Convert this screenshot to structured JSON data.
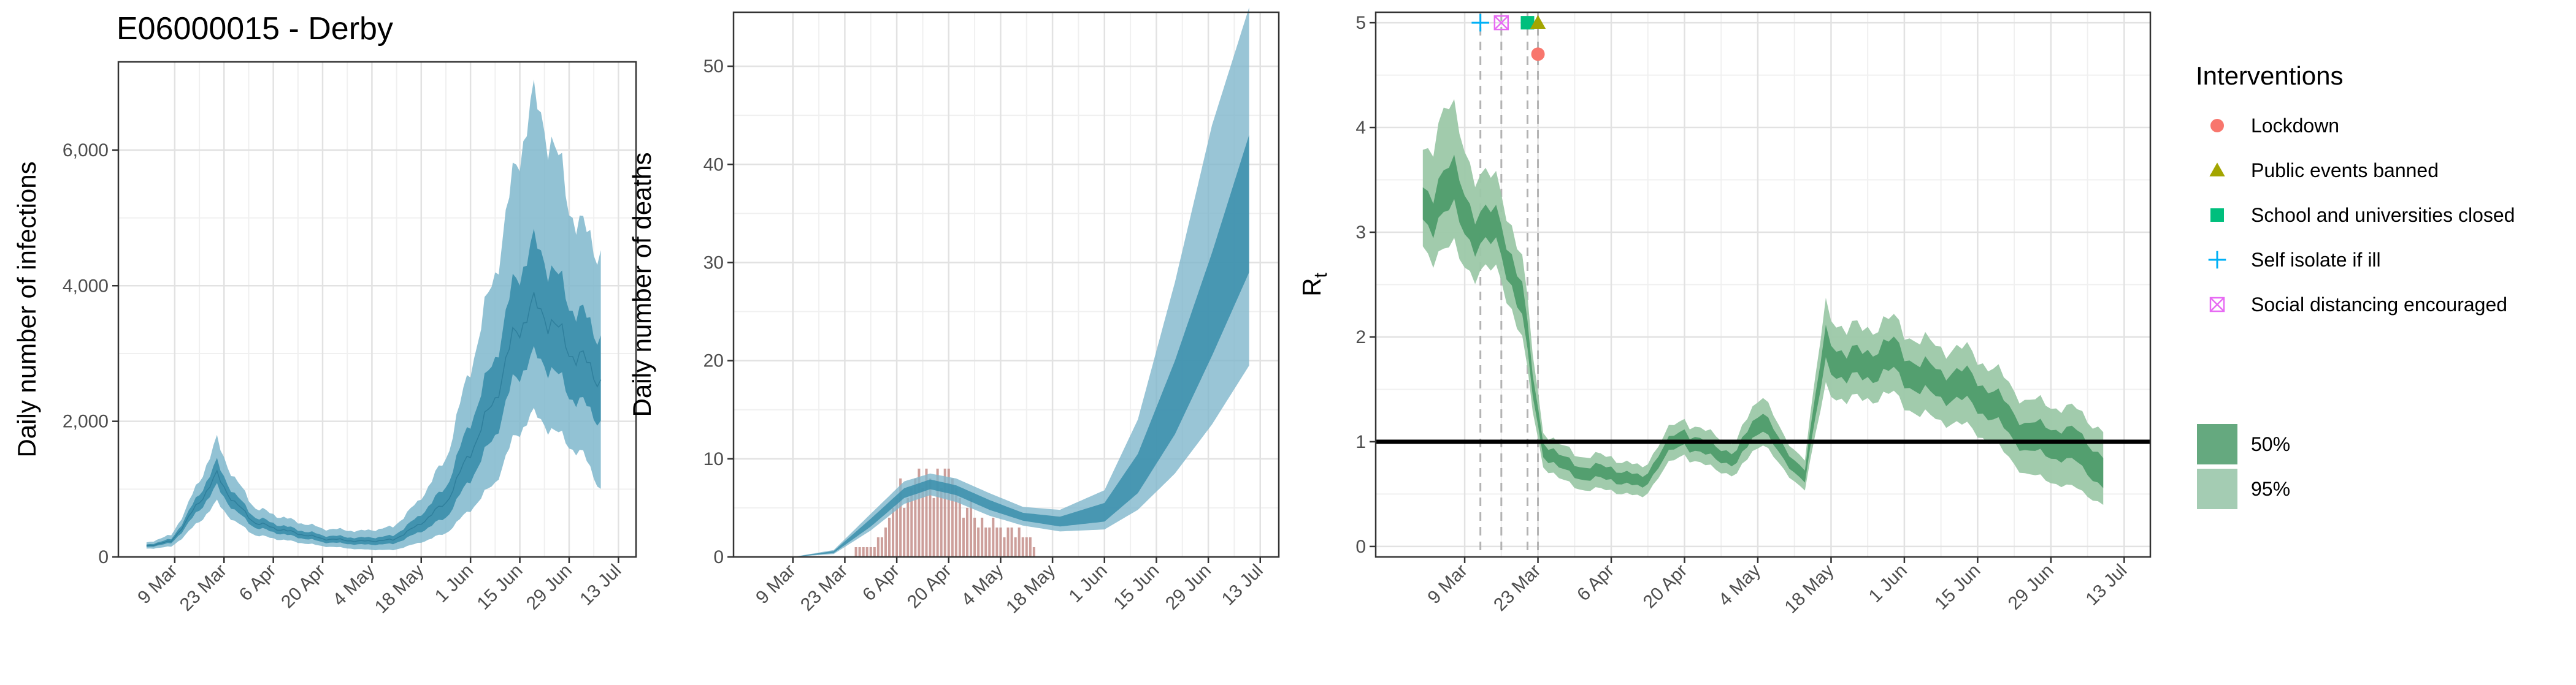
{
  "figure_title": "E06000015 - Derby",
  "colors": {
    "infection_dark": "#3a8eab",
    "infection_light": "#7fb7cc",
    "deaths_bar": "#c48e8a",
    "rt_dark": "#4a9a68",
    "rt_light": "#9cc8a8",
    "lockdown": "#f8766d",
    "public_events": "#a3a500",
    "schools": "#00bf7d",
    "self_isolate": "#00b0f6",
    "social_distancing": "#e76bf3"
  },
  "legend": {
    "title": "Interventions",
    "items": [
      {
        "label": "Lockdown",
        "icon": "circle-icon",
        "color": "#f8766d"
      },
      {
        "label": "Public events banned",
        "icon": "triangle-icon",
        "color": "#a3a500"
      },
      {
        "label": "School and universities closed",
        "icon": "square-icon",
        "color": "#00bf7d"
      },
      {
        "label": "Self isolate if ill",
        "icon": "plus-icon",
        "color": "#00b0f6"
      },
      {
        "label": "Social distancing encouraged",
        "icon": "boxed-x-icon",
        "color": "#e76bf3"
      }
    ],
    "ci": [
      {
        "label": "50%",
        "color": "#4a9a68",
        "opacity": 0.85
      },
      {
        "label": "95%",
        "color": "#4a9a68",
        "opacity": 0.5
      }
    ]
  },
  "chart_data": [
    {
      "type": "area",
      "ylabel": "Daily number of infections",
      "date_ticks": [
        "2020-03-09",
        "2020-03-23",
        "2020-04-06",
        "2020-04-20",
        "2020-05-04",
        "2020-05-18",
        "2020-06-01",
        "2020-06-15",
        "2020-06-29",
        "2020-07-13"
      ],
      "x_tick_labels": [
        "9 Mar",
        "23 Mar",
        "6 Apr",
        "20 Apr",
        "4 May",
        "18 May",
        "1 Jun",
        "15 Jun",
        "29 Jun",
        "13 Jul"
      ],
      "y_ticks": [
        0,
        2000,
        4000,
        6000
      ],
      "y_tick_labels": [
        "0",
        "2,000",
        "4,000",
        "6,000"
      ],
      "xlim": [
        "2020-02-22",
        "2020-07-18"
      ],
      "ylim": [
        0,
        7300
      ],
      "grid": true,
      "series_knots": {
        "dates": [
          "2020-03-01",
          "2020-03-08",
          "2020-03-12",
          "2020-03-17",
          "2020-03-21",
          "2020-03-26",
          "2020-04-01",
          "2020-04-10",
          "2020-04-20",
          "2020-05-01",
          "2020-05-10",
          "2020-05-17",
          "2020-05-25",
          "2020-06-01",
          "2020-06-08",
          "2020-06-13",
          "2020-06-18",
          "2020-06-24",
          "2020-06-29",
          "2020-07-03",
          "2020-07-08"
        ],
        "mid": [
          160,
          230,
          500,
          900,
          1200,
          800,
          500,
          380,
          270,
          230,
          250,
          460,
          800,
          1550,
          2350,
          3200,
          3700,
          3500,
          3050,
          2900,
          2600
        ],
        "lower50": [
          145,
          200,
          430,
          770,
          1030,
          680,
          430,
          320,
          220,
          180,
          190,
          350,
          580,
          1150,
          1800,
          2550,
          2950,
          2800,
          2400,
          2250,
          2000
        ],
        "upper50": [
          180,
          260,
          570,
          1030,
          1380,
          920,
          580,
          440,
          320,
          280,
          310,
          580,
          1030,
          2000,
          2950,
          3950,
          4600,
          4300,
          3750,
          3550,
          3250
        ],
        "lower95": [
          120,
          150,
          320,
          580,
          800,
          520,
          320,
          240,
          160,
          110,
          100,
          200,
          350,
          700,
          1100,
          1700,
          2100,
          1900,
          1650,
          1500,
          1000
        ],
        "upper95": [
          210,
          320,
          680,
          1250,
          1700,
          1150,
          720,
          560,
          420,
          380,
          440,
          800,
          1450,
          2800,
          4200,
          5500,
          6700,
          6200,
          5200,
          4800,
          4500
        ]
      }
    },
    {
      "type": "bar+area",
      "ylabel": "Daily number of deaths",
      "date_ticks": [
        "2020-03-09",
        "2020-03-23",
        "2020-04-06",
        "2020-04-20",
        "2020-05-04",
        "2020-05-18",
        "2020-06-01",
        "2020-06-15",
        "2020-06-29",
        "2020-07-13"
      ],
      "x_tick_labels": [
        "9 Mar",
        "23 Mar",
        "6 Apr",
        "20 Apr",
        "4 May",
        "18 May",
        "1 Jun",
        "15 Jun",
        "29 Jun",
        "13 Jul"
      ],
      "y_ticks": [
        0,
        10,
        20,
        30,
        40,
        50
      ],
      "y_tick_labels": [
        "0",
        "10",
        "20",
        "30",
        "40",
        "50"
      ],
      "xlim": [
        "2020-02-22",
        "2020-07-18"
      ],
      "ylim": [
        0,
        55.5
      ],
      "grid": true,
      "bars": {
        "start_date": "2020-03-26",
        "values": [
          1,
          1,
          1,
          1,
          1,
          1,
          2,
          2,
          3,
          4,
          5,
          6,
          8,
          5,
          6,
          7,
          8,
          9,
          7,
          9,
          8,
          6,
          9,
          7,
          9,
          9,
          8,
          7,
          6,
          4,
          5,
          6,
          4,
          3,
          4,
          3,
          3,
          4,
          3,
          3,
          2,
          3,
          3,
          2,
          3,
          2,
          2,
          2,
          1
        ]
      },
      "series_knots": {
        "dates": [
          "2020-03-09",
          "2020-03-20",
          "2020-03-30",
          "2020-04-08",
          "2020-04-15",
          "2020-04-22",
          "2020-05-01",
          "2020-05-10",
          "2020-05-20",
          "2020-06-01",
          "2020-06-10",
          "2020-06-20",
          "2020-06-30",
          "2020-07-10"
        ],
        "mid": [
          0,
          0.5,
          3.5,
          6.5,
          7.4,
          6.8,
          5.3,
          4.1,
          3.6,
          4.5,
          8.5,
          16.0,
          26.0,
          36.0
        ],
        "lower50": [
          0,
          0.4,
          3.1,
          6.0,
          6.9,
          6.3,
          4.8,
          3.7,
          3.1,
          3.6,
          6.5,
          12.5,
          20.5,
          29.0
        ],
        "upper50": [
          0,
          0.6,
          3.9,
          7.0,
          7.9,
          7.3,
          5.8,
          4.5,
          4.1,
          5.5,
          10.5,
          20.0,
          31.0,
          43.0
        ],
        "lower95": [
          0,
          0.3,
          2.7,
          5.4,
          6.3,
          5.6,
          4.2,
          3.2,
          2.6,
          2.8,
          4.8,
          8.5,
          13.5,
          19.5
        ],
        "upper95": [
          0,
          0.7,
          4.4,
          7.7,
          8.5,
          8.0,
          6.5,
          5.1,
          4.8,
          6.8,
          14.0,
          28.0,
          44.0,
          56.0
        ]
      }
    },
    {
      "type": "area",
      "ylabel": "R",
      "ylabel_subscript": "t",
      "date_ticks": [
        "2020-03-09",
        "2020-03-23",
        "2020-04-06",
        "2020-04-20",
        "2020-05-04",
        "2020-05-18",
        "2020-06-01",
        "2020-06-15",
        "2020-06-29",
        "2020-07-13"
      ],
      "x_tick_labels": [
        "9 Mar",
        "23 Mar",
        "6 Apr",
        "20 Apr",
        "4 May",
        "18 May",
        "1 Jun",
        "15 Jun",
        "29 Jun",
        "13 Jul"
      ],
      "y_ticks": [
        0,
        1,
        2,
        3,
        4,
        5
      ],
      "y_tick_labels": [
        "0",
        "1",
        "2",
        "3",
        "4",
        "5"
      ],
      "xlim": [
        "2020-02-21",
        "2020-07-18"
      ],
      "ylim": [
        -0.1,
        5.1
      ],
      "grid": true,
      "reference_line": 1,
      "interventions": [
        {
          "label": "Self isolate if ill",
          "date": "2020-03-12",
          "y": 5.0,
          "icon": "plus-icon"
        },
        {
          "label": "Social distancing encouraged",
          "date": "2020-03-16",
          "y": 5.0,
          "icon": "boxed-x-icon"
        },
        {
          "label": "School and universities closed",
          "date": "2020-03-21",
          "y": 5.0,
          "icon": "square-icon"
        },
        {
          "label": "Public events banned",
          "date": "2020-03-23",
          "y": 5.0,
          "icon": "triangle-icon"
        },
        {
          "label": "Lockdown",
          "date": "2020-03-23",
          "y": 4.7,
          "icon": "circle-icon"
        }
      ],
      "series_knots": {
        "dates": [
          "2020-03-01",
          "2020-03-05",
          "2020-03-08",
          "2020-03-12",
          "2020-03-16",
          "2020-03-20",
          "2020-03-22",
          "2020-03-24",
          "2020-03-27",
          "2020-04-01",
          "2020-04-06",
          "2020-04-12",
          "2020-04-16",
          "2020-04-20",
          "2020-04-25",
          "2020-04-30",
          "2020-05-05",
          "2020-05-09",
          "2020-05-13",
          "2020-05-17",
          "2020-05-21",
          "2020-05-25",
          "2020-05-30",
          "2020-06-04",
          "2020-06-09",
          "2020-06-14",
          "2020-06-19",
          "2020-06-24",
          "2020-06-29",
          "2020-07-04",
          "2020-07-09"
        ],
        "mid": [
          3.2,
          3.4,
          3.3,
          3.0,
          3.0,
          2.3,
          1.55,
          0.95,
          0.8,
          0.7,
          0.7,
          0.6,
          0.9,
          1.05,
          0.9,
          0.85,
          1.25,
          0.85,
          0.7,
          1.9,
          1.7,
          1.75,
          1.8,
          1.6,
          1.55,
          1.5,
          1.3,
          1.05,
          1.0,
          0.95,
          0.7
        ],
        "lower50": [
          3.05,
          3.2,
          3.1,
          2.85,
          2.85,
          2.15,
          1.45,
          0.88,
          0.74,
          0.64,
          0.64,
          0.55,
          0.84,
          0.98,
          0.84,
          0.79,
          1.16,
          0.79,
          0.64,
          1.75,
          1.58,
          1.62,
          1.66,
          1.47,
          1.42,
          1.36,
          1.17,
          0.92,
          0.86,
          0.8,
          0.56
        ],
        "upper50": [
          3.35,
          3.6,
          3.5,
          3.15,
          3.15,
          2.45,
          1.65,
          1.02,
          0.86,
          0.76,
          0.76,
          0.65,
          0.96,
          1.12,
          0.96,
          0.91,
          1.34,
          0.91,
          0.76,
          2.05,
          1.82,
          1.88,
          1.94,
          1.73,
          1.68,
          1.64,
          1.43,
          1.18,
          1.14,
          1.1,
          0.85
        ],
        "lower95": [
          2.8,
          2.85,
          2.75,
          2.6,
          2.6,
          1.95,
          1.3,
          0.78,
          0.64,
          0.54,
          0.54,
          0.46,
          0.74,
          0.88,
          0.74,
          0.69,
          1.02,
          0.7,
          0.56,
          1.52,
          1.38,
          1.42,
          1.44,
          1.25,
          1.2,
          1.12,
          0.94,
          0.7,
          0.62,
          0.55,
          0.4
        ],
        "upper95": [
          3.7,
          4.2,
          3.95,
          3.5,
          3.45,
          2.7,
          1.85,
          1.12,
          0.96,
          0.86,
          0.86,
          0.74,
          1.06,
          1.22,
          1.06,
          1.01,
          1.5,
          1.01,
          0.86,
          2.3,
          2.05,
          2.1,
          2.15,
          1.95,
          1.9,
          1.85,
          1.65,
          1.4,
          1.35,
          1.3,
          1.1
        ]
      }
    }
  ]
}
